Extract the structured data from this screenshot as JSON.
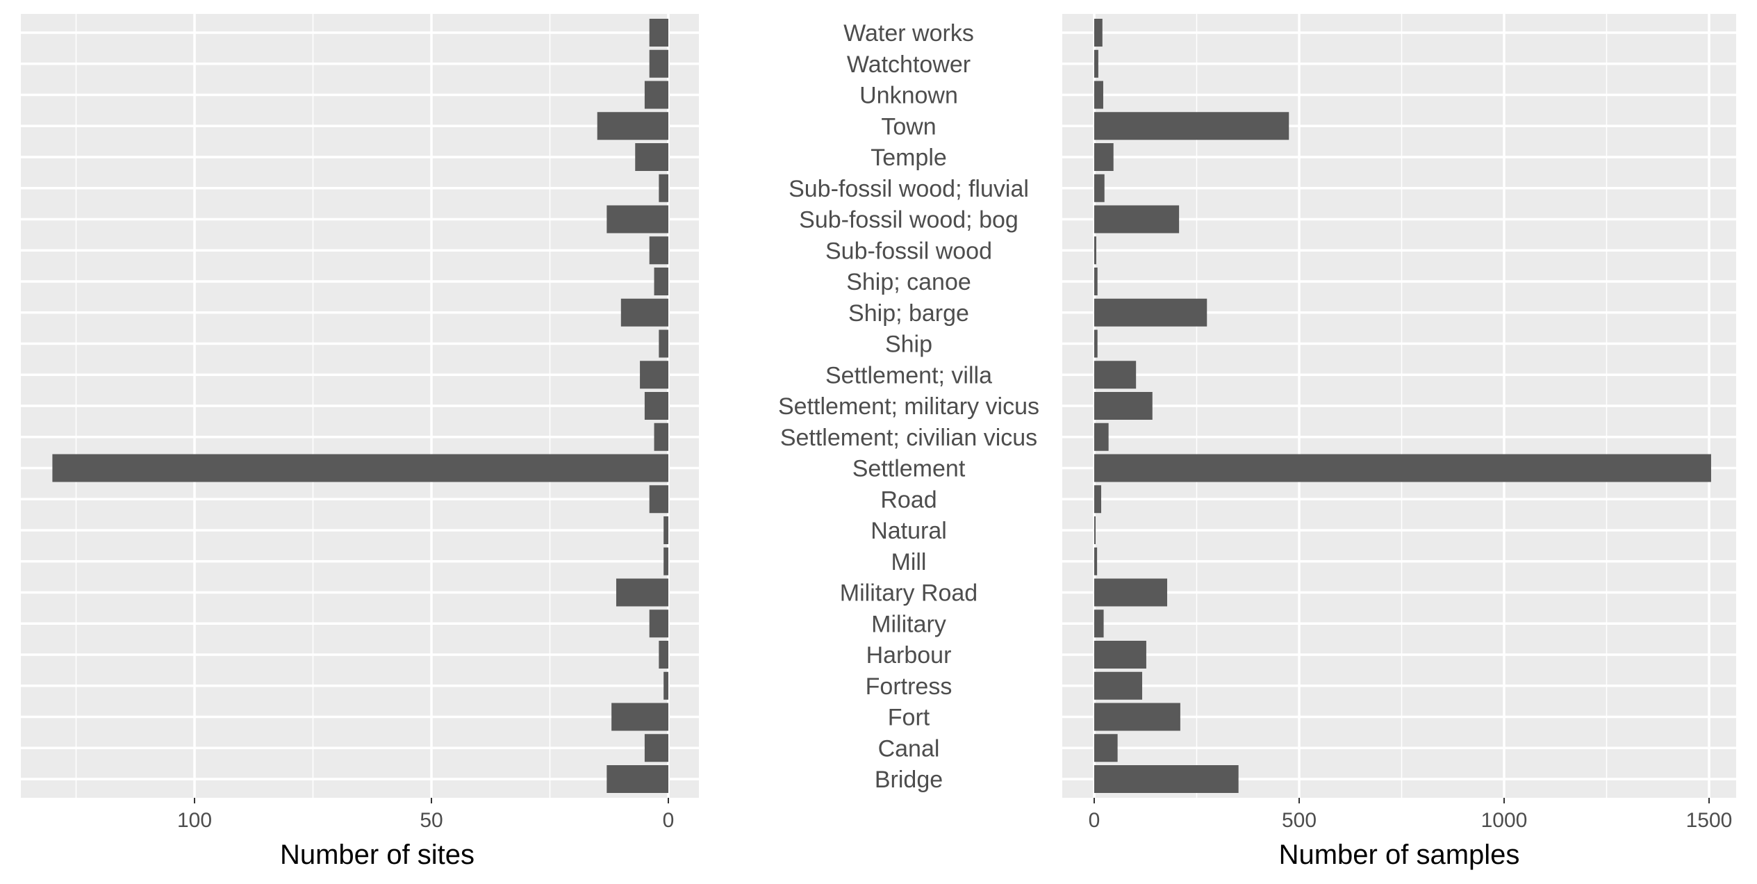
{
  "chart_data": [
    {
      "type": "bar",
      "orientation": "horizontal",
      "x_reversed": true,
      "xlabel": "Number of sites",
      "ylabel": "",
      "xlim": [
        130,
        0
      ],
      "xticks": [
        100,
        50,
        0
      ],
      "grid": true,
      "categories": [
        "Water works",
        "Watchtower",
        "Unknown",
        "Town",
        "Temple",
        "Sub-fossil wood; fluvial",
        "Sub-fossil wood; bog",
        "Sub-fossil wood",
        "Ship; canoe",
        "Ship; barge",
        "Ship",
        "Settlement; villa",
        "Settlement; military vicus",
        "Settlement; civilian vicus",
        "Settlement",
        "Road",
        "Natural",
        "Mill",
        "Military Road",
        "Military",
        "Harbour",
        "Fortress",
        "Fort",
        "Canal",
        "Bridge"
      ],
      "values": [
        4,
        4,
        5,
        15,
        7,
        2,
        13,
        4,
        3,
        10,
        2,
        6,
        5,
        3,
        130,
        4,
        1,
        1,
        11,
        4,
        2,
        1,
        12,
        5,
        13
      ]
    },
    {
      "type": "bar",
      "orientation": "horizontal",
      "xlabel": "Number of samples",
      "ylabel": "",
      "xlim": [
        0,
        1500
      ],
      "xticks": [
        0,
        500,
        1000,
        1500
      ],
      "grid": true,
      "categories": [
        "Water works",
        "Watchtower",
        "Unknown",
        "Town",
        "Temple",
        "Sub-fossil wood; fluvial",
        "Sub-fossil wood; bog",
        "Sub-fossil wood",
        "Ship; canoe",
        "Ship; barge",
        "Ship",
        "Settlement; villa",
        "Settlement; military vicus",
        "Settlement; civilian vicus",
        "Settlement",
        "Road",
        "Natural",
        "Mill",
        "Military Road",
        "Military",
        "Harbour",
        "Fortress",
        "Fort",
        "Canal",
        "Bridge"
      ],
      "values": [
        20,
        10,
        22,
        475,
        47,
        25,
        207,
        5,
        8,
        275,
        8,
        102,
        142,
        35,
        1505,
        17,
        3,
        7,
        178,
        23,
        127,
        117,
        210,
        57,
        352
      ]
    }
  ],
  "colors": {
    "panel_background": "#ebebeb",
    "grid_major": "#ffffff",
    "bar_fill": "#595959",
    "tick_text": "#4d4d4d",
    "title_text": "#000000"
  }
}
